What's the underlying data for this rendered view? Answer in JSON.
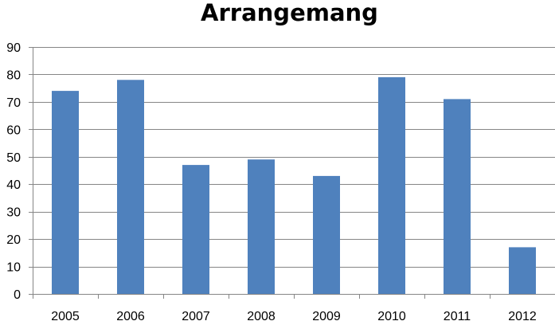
{
  "chart_data": {
    "type": "bar",
    "title": "Arrangemang",
    "xlabel": "",
    "ylabel": "",
    "categories": [
      "2005",
      "2006",
      "2007",
      "2008",
      "2009",
      "2010",
      "2011",
      "2012"
    ],
    "values": [
      74,
      78,
      47,
      49,
      43,
      79,
      71,
      17
    ],
    "ylim": [
      0,
      90
    ],
    "yticks": [
      0,
      10,
      20,
      30,
      40,
      50,
      60,
      70,
      80,
      90
    ],
    "grid": true,
    "legend": "none",
    "bar_color": "#4F81BD",
    "grid_color": "#868686"
  }
}
